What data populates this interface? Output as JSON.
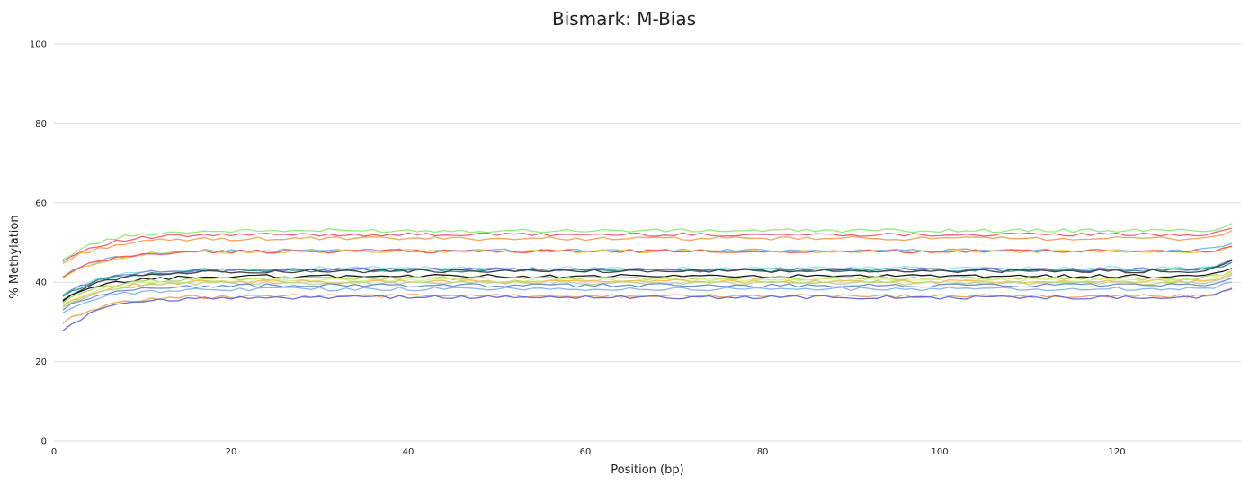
{
  "chart_data": {
    "type": "line",
    "title": "Bismark: M-Bias",
    "xlabel": "Position (bp)",
    "ylabel": "% Methylation",
    "xlim": [
      0,
      134
    ],
    "ylim": [
      0,
      100
    ],
    "x_ticks": [
      0,
      20,
      40,
      60,
      80,
      100,
      120
    ],
    "y_ticks": [
      0,
      20,
      40,
      60,
      80,
      100
    ],
    "x_tick_labels": [
      "0",
      "20",
      "40",
      "60",
      "80",
      "100",
      "120"
    ],
    "y_tick_labels": [
      "0",
      "20",
      "40",
      "60",
      "80",
      "100"
    ],
    "grid": true,
    "legend": "none",
    "x_range": [
      1,
      133
    ],
    "series": [
      {
        "color": "#90ed7d",
        "start": 45.8,
        "plateau": 53.0,
        "end": 54.8
      },
      {
        "color": "#f15c80",
        "start": 45.3,
        "plateau": 52.0,
        "end": 53.6
      },
      {
        "color": "#f7a35c",
        "start": 44.8,
        "plateau": 51.0,
        "end": 53.0
      },
      {
        "color": "#7cb5ec",
        "start": 41.2,
        "plateau": 48.0,
        "end": 49.8
      },
      {
        "color": "#e4d354",
        "start": 41.0,
        "plateau": 47.8,
        "end": 49.2
      },
      {
        "color": "#f45b5b",
        "start": 41.3,
        "plateau": 47.8,
        "end": 49.0
      },
      {
        "color": "#91e8e1",
        "start": 36.8,
        "plateau": 43.5,
        "end": 45.5
      },
      {
        "color": "#8085e9",
        "start": 36.6,
        "plateau": 43.2,
        "end": 45.8
      },
      {
        "color": "#2b908f",
        "start": 36.4,
        "plateau": 43.0,
        "end": 45.0
      },
      {
        "color": "#434348",
        "start": 35.5,
        "plateau": 42.8,
        "end": 45.5
      },
      {
        "color": "#1b1b1b",
        "start": 35.2,
        "plateau": 41.5,
        "end": 43.5
      },
      {
        "color": "#a6d96a",
        "start": 34.8,
        "plateau": 41.0,
        "end": 43.0
      },
      {
        "color": "#d9ef8b",
        "start": 34.5,
        "plateau": 40.5,
        "end": 42.5
      },
      {
        "color": "#f0c05a",
        "start": 34.0,
        "plateau": 40.2,
        "end": 42.2
      },
      {
        "color": "#b8d88b",
        "start": 33.6,
        "plateau": 39.8,
        "end": 41.8
      },
      {
        "color": "#6f8fd8",
        "start": 33.0,
        "plateau": 39.2,
        "end": 41.0
      },
      {
        "color": "#8ab6e8",
        "start": 32.3,
        "plateau": 38.3,
        "end": 40.0
      },
      {
        "color": "#f7a35c",
        "start": 29.6,
        "plateau": 36.5,
        "end": 38.5
      },
      {
        "color": "#6a6ed6",
        "start": 27.8,
        "plateau": 36.2,
        "end": 38.3
      }
    ]
  }
}
